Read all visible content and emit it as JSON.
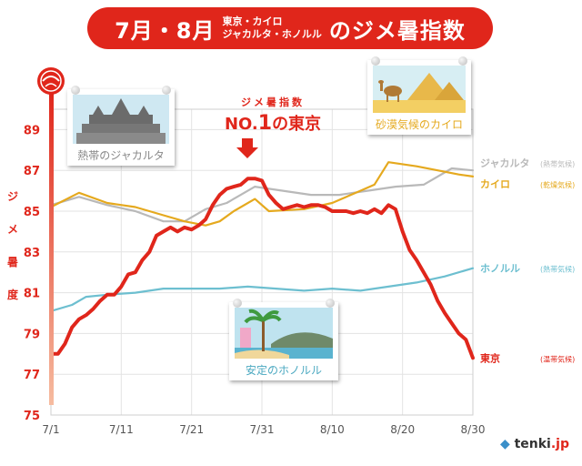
{
  "title": {
    "left": "7月・8月",
    "line1": "東京・カイロ",
    "line2": "ジャカルタ・ホノルル",
    "right": "のジメ暑指数"
  },
  "annotation": {
    "sub": "ジメ暑指数",
    "main": "NO.1の東京",
    "no": "NO.",
    "one": "1",
    "rest": "の東京"
  },
  "cards": {
    "jakarta": "熱帯のジャカルタ",
    "cairo": "砂漠気候のカイロ",
    "honolulu": "安定のホノルル"
  },
  "logo": {
    "name": "tenki",
    "suffix": ".jp"
  },
  "chart_data": {
    "type": "line",
    "title": "7月・8月 東京・カイロ ジャカルタ・ホノルル のジメ暑指数",
    "ylabel": "ジメ暑度",
    "xlabel": "",
    "ylim": [
      75,
      90
    ],
    "yticks": [
      75,
      77,
      79,
      81,
      83,
      85,
      87,
      89
    ],
    "xticks": [
      {
        "label": "7/1",
        "day": 0
      },
      {
        "label": "7/11",
        "day": 10
      },
      {
        "label": "7/21",
        "day": 20
      },
      {
        "label": "7/31",
        "day": 30
      },
      {
        "label": "8/10",
        "day": 40
      },
      {
        "label": "8/20",
        "day": 50
      },
      {
        "label": "8/30",
        "day": 60
      }
    ],
    "series": [
      {
        "name": "ジャカルタ",
        "climate": "(熱帯気候)",
        "color": "#b9b9b9",
        "points": [
          [
            0,
            85.3
          ],
          [
            4,
            85.7
          ],
          [
            8,
            85.3
          ],
          [
            12,
            85.0
          ],
          [
            16,
            84.5
          ],
          [
            19,
            84.5
          ],
          [
            22,
            85.1
          ],
          [
            25,
            85.4
          ],
          [
            29,
            86.2
          ],
          [
            33,
            86.0
          ],
          [
            37,
            85.8
          ],
          [
            41,
            85.8
          ],
          [
            45,
            86.0
          ],
          [
            49,
            86.2
          ],
          [
            53,
            86.3
          ],
          [
            57,
            87.1
          ],
          [
            60,
            87.0
          ]
        ]
      },
      {
        "name": "カイロ",
        "climate": "(乾燥気候)",
        "color": "#e5a91e",
        "points": [
          [
            0,
            85.2
          ],
          [
            4,
            85.9
          ],
          [
            8,
            85.4
          ],
          [
            12,
            85.2
          ],
          [
            16,
            84.8
          ],
          [
            19,
            84.5
          ],
          [
            22,
            84.3
          ],
          [
            24,
            84.5
          ],
          [
            26,
            85.0
          ],
          [
            29,
            85.6
          ],
          [
            31,
            85.0
          ],
          [
            36,
            85.1
          ],
          [
            40,
            85.4
          ],
          [
            44,
            86.0
          ],
          [
            46,
            86.3
          ],
          [
            48,
            87.4
          ],
          [
            52,
            87.2
          ],
          [
            55,
            87.0
          ],
          [
            58,
            86.8
          ],
          [
            60,
            86.7
          ]
        ]
      },
      {
        "name": "ホノルル",
        "climate": "(熱帯気候)",
        "color": "#6dbfd0",
        "points": [
          [
            0,
            80.1
          ],
          [
            3,
            80.4
          ],
          [
            5,
            80.8
          ],
          [
            8,
            80.9
          ],
          [
            12,
            81.0
          ],
          [
            16,
            81.2
          ],
          [
            20,
            81.2
          ],
          [
            24,
            81.2
          ],
          [
            28,
            81.3
          ],
          [
            32,
            81.2
          ],
          [
            36,
            81.1
          ],
          [
            40,
            81.2
          ],
          [
            44,
            81.1
          ],
          [
            48,
            81.3
          ],
          [
            52,
            81.5
          ],
          [
            56,
            81.8
          ],
          [
            60,
            82.2
          ]
        ]
      },
      {
        "name": "東京",
        "climate": "(温帯気候)",
        "color": "#e0261b",
        "points": [
          [
            0,
            78.0
          ],
          [
            1,
            78.0
          ],
          [
            2,
            78.5
          ],
          [
            3,
            79.3
          ],
          [
            4,
            79.7
          ],
          [
            5,
            79.9
          ],
          [
            6,
            80.2
          ],
          [
            7,
            80.6
          ],
          [
            8,
            80.9
          ],
          [
            9,
            80.9
          ],
          [
            10,
            81.3
          ],
          [
            11,
            81.9
          ],
          [
            12,
            82.0
          ],
          [
            13,
            82.6
          ],
          [
            14,
            83.0
          ],
          [
            15,
            83.8
          ],
          [
            16,
            84.0
          ],
          [
            17,
            84.2
          ],
          [
            18,
            84.0
          ],
          [
            19,
            84.2
          ],
          [
            20,
            84.1
          ],
          [
            21,
            84.3
          ],
          [
            22,
            84.6
          ],
          [
            23,
            85.3
          ],
          [
            24,
            85.8
          ],
          [
            25,
            86.1
          ],
          [
            26,
            86.2
          ],
          [
            27,
            86.3
          ],
          [
            28,
            86.6
          ],
          [
            29,
            86.6
          ],
          [
            30,
            86.5
          ],
          [
            31,
            85.8
          ],
          [
            32,
            85.4
          ],
          [
            33,
            85.1
          ],
          [
            34,
            85.2
          ],
          [
            35,
            85.3
          ],
          [
            36,
            85.2
          ],
          [
            37,
            85.3
          ],
          [
            38,
            85.3
          ],
          [
            39,
            85.2
          ],
          [
            40,
            85.0
          ],
          [
            41,
            85.0
          ],
          [
            42,
            85.0
          ],
          [
            43,
            84.9
          ],
          [
            44,
            85.0
          ],
          [
            45,
            84.9
          ],
          [
            46,
            85.1
          ],
          [
            47,
            84.9
          ],
          [
            48,
            85.3
          ],
          [
            49,
            85.1
          ],
          [
            50,
            84.0
          ],
          [
            51,
            83.1
          ],
          [
            52,
            82.6
          ],
          [
            53,
            82.0
          ],
          [
            54,
            81.4
          ],
          [
            55,
            80.6
          ],
          [
            56,
            80.0
          ],
          [
            57,
            79.5
          ],
          [
            58,
            79.0
          ],
          [
            59,
            78.7
          ],
          [
            60,
            77.8
          ]
        ]
      }
    ],
    "grid": true,
    "legend": "right"
  }
}
